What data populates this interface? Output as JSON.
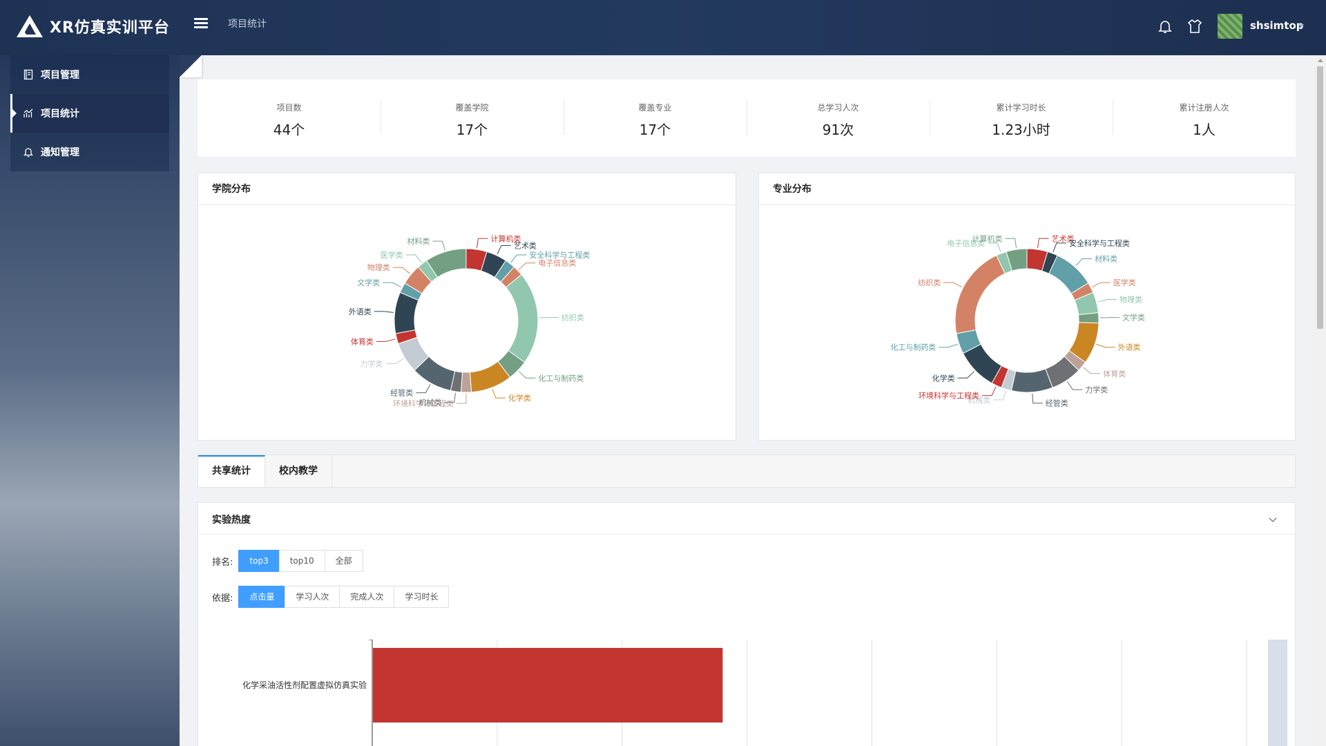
{
  "app": {
    "title": "XR仿真实训平台"
  },
  "header": {
    "breadcrumb": "项目统计",
    "username": "shsimtop"
  },
  "sidebar": {
    "items": [
      {
        "label": "项目管理",
        "icon": "book-icon",
        "active": false
      },
      {
        "label": "项目统计",
        "icon": "chart-icon",
        "active": true
      },
      {
        "label": "通知管理",
        "icon": "bell-icon",
        "active": false
      }
    ]
  },
  "stats": [
    {
      "label": "项目数",
      "value": "44个"
    },
    {
      "label": "覆盖学院",
      "value": "17个"
    },
    {
      "label": "覆盖专业",
      "value": "17个"
    },
    {
      "label": "总学习人次",
      "value": "91次"
    },
    {
      "label": "累计学习时长",
      "value": "1.23小时"
    },
    {
      "label": "累计注册人次",
      "value": "1人"
    }
  ],
  "panels": {
    "college": {
      "title": "学院分布"
    },
    "major": {
      "title": "专业分布"
    }
  },
  "tabs": [
    {
      "label": "共享统计",
      "active": true
    },
    {
      "label": "校内教学",
      "active": false
    }
  ],
  "heat": {
    "title": "实验热度",
    "rank_label": "排名:",
    "rank_options": [
      "top3",
      "top10",
      "全部"
    ],
    "rank_selected": "top3",
    "basis_label": "依据:",
    "basis_options": [
      "点击量",
      "学习人次",
      "完成人次",
      "学习时长"
    ],
    "basis_selected": "点击量"
  },
  "chart_data": [
    {
      "type": "pie",
      "chart_title": "学院分布",
      "colors": [
        "#c23531",
        "#2f4554",
        "#61a0a8",
        "#d48265",
        "#91c7ae",
        "#749f83",
        "#ca8622",
        "#bda29a",
        "#6e7074",
        "#546570",
        "#c4ccd3"
      ],
      "slices": [
        {
          "name": "计算机类",
          "value": 2
        },
        {
          "name": "艺术类",
          "value": 2
        },
        {
          "name": "安全科学与工程类",
          "value": 1
        },
        {
          "name": "电子信息类",
          "value": 1
        },
        {
          "name": "纺织类",
          "value": 9
        },
        {
          "name": "化工与制药类",
          "value": 2
        },
        {
          "name": "化学类",
          "value": 4
        },
        {
          "name": "环境科学与工程类",
          "value": 1
        },
        {
          "name": "机械类",
          "value": 1
        },
        {
          "name": "经管类",
          "value": 4
        },
        {
          "name": "力学类",
          "value": 3
        },
        {
          "name": "体育类",
          "value": 1
        },
        {
          "name": "外语类",
          "value": 4
        },
        {
          "name": "文学类",
          "value": 1
        },
        {
          "name": "物理类",
          "value": 2
        },
        {
          "name": "医学类",
          "value": 1
        },
        {
          "name": "材料类",
          "value": 4
        }
      ]
    },
    {
      "type": "pie",
      "chart_title": "专业分布",
      "colors": [
        "#c23531",
        "#2f4554",
        "#61a0a8",
        "#d48265",
        "#91c7ae",
        "#749f83",
        "#ca8622",
        "#bda29a",
        "#6e7074",
        "#546570",
        "#c4ccd3"
      ],
      "slices": [
        {
          "name": "艺术类",
          "value": 2
        },
        {
          "name": "安全科学与工程类",
          "value": 1
        },
        {
          "name": "材料类",
          "value": 4
        },
        {
          "name": "医学类",
          "value": 1
        },
        {
          "name": "物理类",
          "value": 2
        },
        {
          "name": "文学类",
          "value": 1
        },
        {
          "name": "外语类",
          "value": 4
        },
        {
          "name": "体育类",
          "value": 1
        },
        {
          "name": "力学类",
          "value": 3
        },
        {
          "name": "经管类",
          "value": 4
        },
        {
          "name": "机械类",
          "value": 1
        },
        {
          "name": "环境科学与工程类",
          "value": 1
        },
        {
          "name": "化学类",
          "value": 4
        },
        {
          "name": "化工与制药类",
          "value": 2
        },
        {
          "name": "纺织类",
          "value": 9
        },
        {
          "name": "电子信息类",
          "value": 1
        },
        {
          "name": "计算机类",
          "value": 2
        }
      ]
    },
    {
      "type": "bar",
      "orientation": "horizontal",
      "categories": [
        "化学采油活性剂配置虚拟仿真实验"
      ],
      "values": [
        28
      ],
      "xlim": [
        0,
        70
      ],
      "grid": true,
      "bar_color": "#c23531"
    }
  ]
}
